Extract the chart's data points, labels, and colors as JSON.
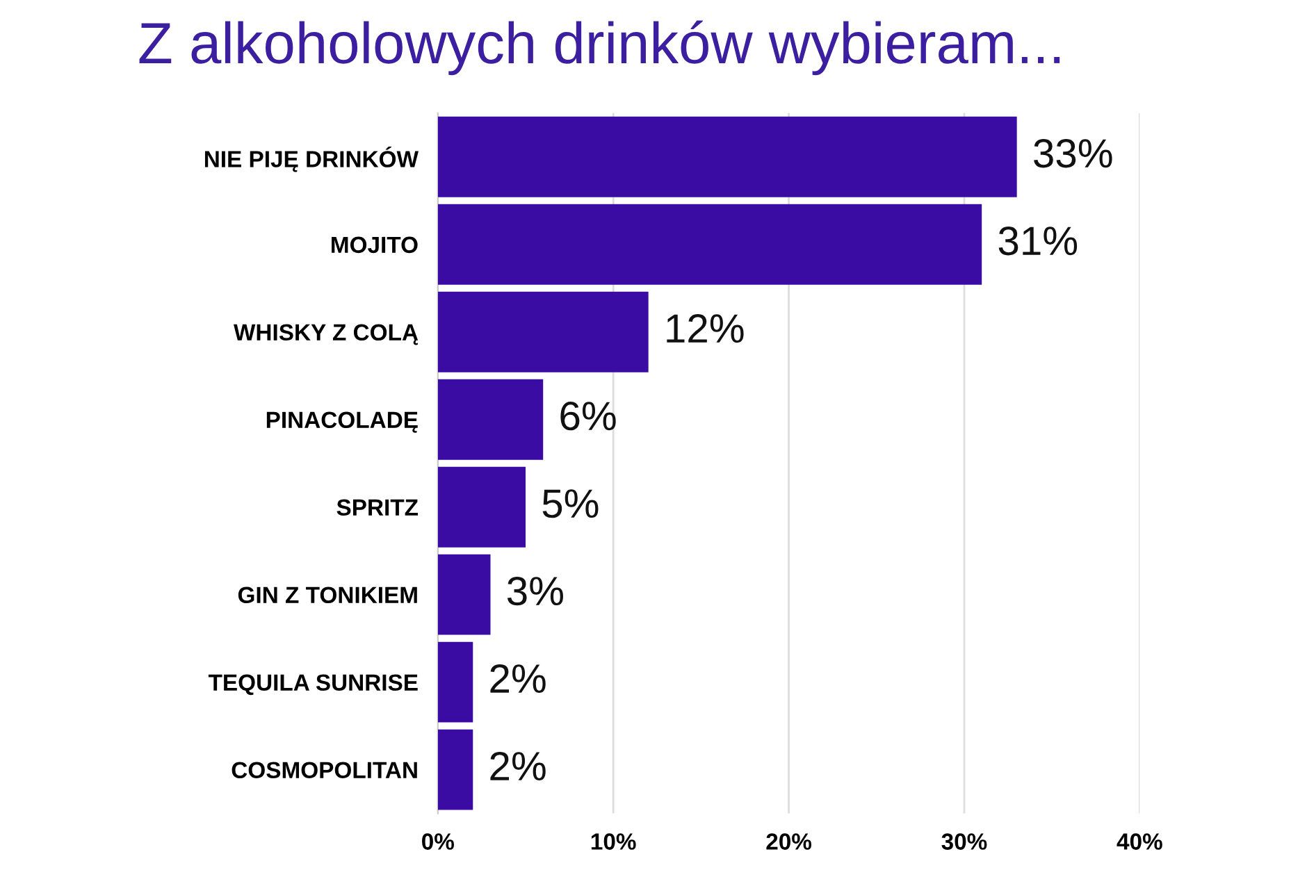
{
  "chart_data": {
    "type": "bar",
    "orientation": "horizontal",
    "title": "Z alkoholowych drinków wybieram...",
    "categories": [
      "NIE PIJĘ DRINKÓW",
      "MOJITO",
      "WHISKY Z COLĄ",
      "PINACOLADĘ",
      "SPRITZ",
      "GIN Z TONIKIEM",
      "TEQUILA SUNRISE",
      "COSMOPOLITAN"
    ],
    "values": [
      33,
      31,
      12,
      6,
      5,
      3,
      2,
      2
    ],
    "value_labels": [
      "33%",
      "31%",
      "12%",
      "6%",
      "5%",
      "3%",
      "2%",
      "2%"
    ],
    "color": "#3a0ca3",
    "xlim": [
      0,
      40
    ],
    "xticks": [
      {
        "value": 0,
        "label": "0%"
      },
      {
        "value": 10,
        "label": "10%"
      },
      {
        "value": 20,
        "label": "20%"
      },
      {
        "value": 30,
        "label": "30%"
      },
      {
        "value": 40,
        "label": "40%"
      }
    ],
    "grid": "x"
  }
}
